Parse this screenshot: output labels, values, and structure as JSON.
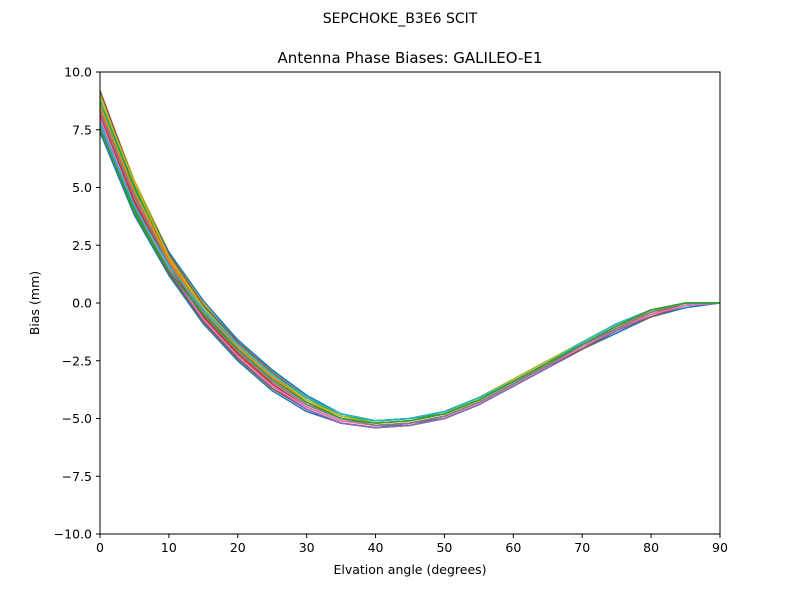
{
  "chart_data": {
    "type": "line",
    "suptitle": "SEPCHOKE_B3E6   SCIT",
    "title": "Antenna Phase Biases: GALILEO-E1",
    "xlabel": "Elvation angle (degrees)",
    "ylabel": "Bias (mm)",
    "xlim": [
      0,
      90
    ],
    "ylim": [
      -10,
      10
    ],
    "xticks": [
      0,
      10,
      20,
      30,
      40,
      50,
      60,
      70,
      80,
      90
    ],
    "yticks": [
      10.0,
      7.5,
      5.0,
      2.5,
      0.0,
      -2.5,
      -5.0,
      -7.5,
      -10.0
    ],
    "ytick_labels": [
      "10.0",
      "7.5",
      "5.0",
      "2.5",
      "0.0",
      "−2.5",
      "−5.0",
      "−7.5",
      "−10.0"
    ],
    "grid": false,
    "legend": "none",
    "x": [
      0,
      5,
      10,
      15,
      20,
      25,
      30,
      35,
      40,
      45,
      50,
      55,
      60,
      65,
      70,
      75,
      80,
      85,
      90
    ],
    "series": [
      {
        "color": "#1f77b4",
        "values": [
          7.4,
          3.8,
          1.2,
          -0.9,
          -2.5,
          -3.8,
          -4.7,
          -5.2,
          -5.4,
          -5.2,
          -5.0,
          -4.4,
          -3.6,
          -2.8,
          -2.0,
          -1.3,
          -0.6,
          -0.2,
          0.0
        ]
      },
      {
        "color": "#ff7f0e",
        "values": [
          8.6,
          5.0,
          1.9,
          -0.3,
          -1.9,
          -3.2,
          -4.2,
          -4.9,
          -5.2,
          -5.1,
          -4.8,
          -4.2,
          -3.4,
          -2.6,
          -1.8,
          -1.0,
          -0.4,
          0.0,
          0.0
        ]
      },
      {
        "color": "#2ca02c",
        "values": [
          7.6,
          3.9,
          1.3,
          -0.8,
          -2.4,
          -3.7,
          -4.6,
          -5.2,
          -5.4,
          -5.3,
          -5.0,
          -4.4,
          -3.6,
          -2.8,
          -1.9,
          -1.2,
          -0.5,
          -0.1,
          0.0
        ]
      },
      {
        "color": "#d62728",
        "values": [
          8.3,
          4.6,
          1.7,
          -0.5,
          -2.1,
          -3.4,
          -4.4,
          -5.0,
          -5.3,
          -5.2,
          -4.9,
          -4.3,
          -3.5,
          -2.7,
          -1.9,
          -1.1,
          -0.5,
          0.0,
          0.0
        ]
      },
      {
        "color": "#9467bd",
        "values": [
          8.0,
          4.3,
          1.5,
          -0.6,
          -2.2,
          -3.5,
          -4.5,
          -5.1,
          -5.3,
          -5.2,
          -4.9,
          -4.3,
          -3.5,
          -2.7,
          -1.9,
          -1.1,
          -0.5,
          -0.1,
          0.0
        ]
      },
      {
        "color": "#8c564b",
        "values": [
          7.9,
          4.1,
          1.3,
          -0.8,
          -2.4,
          -3.7,
          -4.6,
          -5.2,
          -5.4,
          -5.3,
          -5.0,
          -4.4,
          -3.6,
          -2.8,
          -2.0,
          -1.2,
          -0.6,
          -0.1,
          0.0
        ]
      },
      {
        "color": "#e377c2",
        "values": [
          8.2,
          4.5,
          1.6,
          -0.5,
          -2.1,
          -3.4,
          -4.4,
          -5.0,
          -5.3,
          -5.2,
          -4.9,
          -4.3,
          -3.5,
          -2.6,
          -1.8,
          -1.1,
          -0.4,
          0.0,
          0.0
        ]
      },
      {
        "color": "#7f7f7f",
        "values": [
          8.4,
          4.7,
          1.8,
          -0.4,
          -2.0,
          -3.3,
          -4.3,
          -5.0,
          -5.2,
          -5.1,
          -4.8,
          -4.2,
          -3.4,
          -2.6,
          -1.8,
          -1.0,
          -0.4,
          0.0,
          0.0
        ]
      },
      {
        "color": "#bcbd22",
        "values": [
          9.1,
          5.3,
          2.2,
          0.0,
          -1.7,
          -3.0,
          -4.1,
          -4.8,
          -5.1,
          -5.0,
          -4.7,
          -4.1,
          -3.3,
          -2.5,
          -1.7,
          -0.9,
          -0.3,
          0.0,
          0.0
        ]
      },
      {
        "color": "#17becf",
        "values": [
          8.7,
          4.9,
          2.1,
          -0.1,
          -1.6,
          -2.9,
          -4.0,
          -4.8,
          -5.1,
          -5.0,
          -4.7,
          -4.1,
          -3.4,
          -2.6,
          -1.7,
          -0.9,
          -0.3,
          0.0,
          0.0
        ]
      },
      {
        "color": "#1f77b4",
        "values": [
          8.9,
          5.1,
          2.2,
          0.1,
          -1.6,
          -2.9,
          -4.0,
          -4.8,
          -5.1,
          -5.0,
          -4.7,
          -4.1,
          -3.3,
          -2.5,
          -1.7,
          -0.9,
          -0.3,
          0.0,
          0.0
        ]
      },
      {
        "color": "#ff7f0e",
        "values": [
          8.5,
          4.8,
          1.8,
          -0.3,
          -1.9,
          -3.2,
          -4.3,
          -4.9,
          -5.2,
          -5.1,
          -4.8,
          -4.2,
          -3.4,
          -2.6,
          -1.8,
          -1.0,
          -0.4,
          0.0,
          0.0
        ]
      },
      {
        "color": "#2ca02c",
        "values": [
          8.8,
          5.0,
          2.0,
          -0.2,
          -1.8,
          -3.1,
          -4.1,
          -4.9,
          -5.1,
          -5.0,
          -4.8,
          -4.1,
          -3.3,
          -2.5,
          -1.7,
          -0.9,
          -0.3,
          0.0,
          0.0
        ]
      },
      {
        "color": "#d62728",
        "values": [
          8.1,
          4.4,
          1.6,
          -0.6,
          -2.2,
          -3.5,
          -4.5,
          -5.1,
          -5.3,
          -5.2,
          -4.9,
          -4.3,
          -3.5,
          -2.7,
          -1.9,
          -1.1,
          -0.5,
          -0.1,
          0.0
        ]
      },
      {
        "color": "#9467bd",
        "values": [
          7.7,
          4.0,
          1.4,
          -0.7,
          -2.3,
          -3.6,
          -4.6,
          -5.2,
          -5.4,
          -5.3,
          -5.0,
          -4.4,
          -3.6,
          -2.8,
          -1.9,
          -1.2,
          -0.5,
          -0.1,
          0.0
        ]
      },
      {
        "color": "#8c564b",
        "values": [
          9.2,
          5.2,
          2.1,
          -0.1,
          -1.7,
          -3.0,
          -4.1,
          -4.8,
          -5.1,
          -5.0,
          -4.7,
          -4.1,
          -3.3,
          -2.5,
          -1.7,
          -0.9,
          -0.3,
          0.0,
          0.0
        ]
      },
      {
        "color": "#e377c2",
        "values": [
          8.0,
          4.2,
          1.5,
          -0.7,
          -2.3,
          -3.6,
          -4.5,
          -5.1,
          -5.3,
          -5.2,
          -4.9,
          -4.3,
          -3.5,
          -2.7,
          -1.9,
          -1.1,
          -0.5,
          -0.1,
          0.0
        ]
      },
      {
        "color": "#7f7f7f",
        "values": [
          8.3,
          4.6,
          1.7,
          -0.5,
          -2.1,
          -3.4,
          -4.4,
          -5.0,
          -5.3,
          -5.2,
          -4.9,
          -4.3,
          -3.5,
          -2.7,
          -1.8,
          -1.1,
          -0.4,
          0.0,
          0.0
        ]
      },
      {
        "color": "#bcbd22",
        "values": [
          8.9,
          5.2,
          2.0,
          -0.2,
          -1.8,
          -3.1,
          -4.2,
          -4.9,
          -5.2,
          -5.1,
          -4.8,
          -4.1,
          -3.3,
          -2.5,
          -1.7,
          -0.9,
          -0.3,
          0.0,
          0.0
        ]
      },
      {
        "color": "#17becf",
        "values": [
          7.8,
          4.2,
          1.6,
          -0.3,
          -1.8,
          -3.1,
          -4.1,
          -4.8,
          -5.1,
          -5.0,
          -4.7,
          -4.1,
          -3.4,
          -2.6,
          -1.7,
          -0.9,
          -0.3,
          0.0,
          0.0
        ]
      },
      {
        "color": "#2ca02c",
        "values": [
          7.5,
          4.0,
          1.4,
          -0.5,
          -2.0,
          -3.3,
          -4.3,
          -5.0,
          -5.2,
          -5.1,
          -4.8,
          -4.2,
          -3.4,
          -2.6,
          -1.8,
          -1.0,
          -0.3,
          0.0,
          0.0
        ]
      }
    ]
  }
}
